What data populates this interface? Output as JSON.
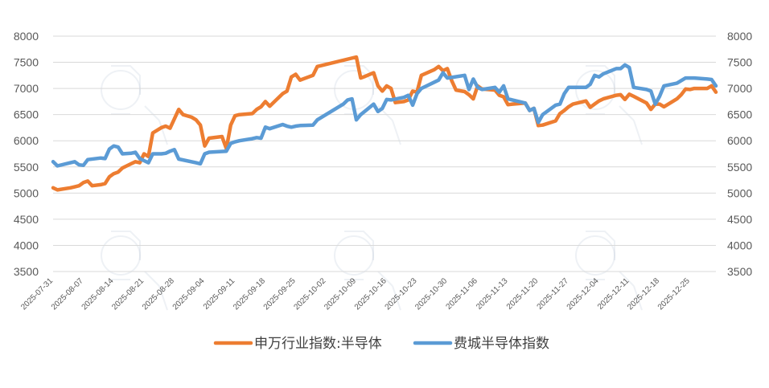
{
  "chart_data": {
    "type": "line",
    "title": "",
    "xlabel": "",
    "ylabel": "",
    "ylim": [
      3500,
      8000
    ],
    "y2lim": [
      3500,
      8000
    ],
    "yticks": [
      3500,
      4000,
      4500,
      5000,
      5500,
      6000,
      6500,
      7000,
      7500,
      8000
    ],
    "yticks_right": [
      3500,
      4000,
      4500,
      5000,
      5500,
      6000,
      6500,
      7000,
      7500,
      8000
    ],
    "xlim": [
      "2025-07-31",
      "2025-12-31"
    ],
    "xticks": [
      "2025-07-31",
      "2025-08-07",
      "2025-08-14",
      "2025-08-21",
      "2025-08-28",
      "2025-09-04",
      "2025-09-11",
      "2025-09-18",
      "2025-09-25",
      "2025-10-02",
      "2025-10-09",
      "2025-10-16",
      "2025-10-23",
      "2025-10-30",
      "2025-11-06",
      "2025-11-13",
      "2025-11-20",
      "2025-11-27",
      "2025-12-04",
      "2025-12-11",
      "2025-12-18",
      "2025-12-25"
    ],
    "grid": "horizontal",
    "legend_position": "bottom",
    "series": [
      {
        "name": "申万行业指数:半导体",
        "color": "#ED7D31",
        "points": [
          [
            "2025-07-31",
            5100
          ],
          [
            "2025-08-01",
            5060
          ],
          [
            "2025-08-04",
            5100
          ],
          [
            "2025-08-05",
            5120
          ],
          [
            "2025-08-06",
            5140
          ],
          [
            "2025-08-07",
            5200
          ],
          [
            "2025-08-08",
            5230
          ],
          [
            "2025-08-09",
            5140
          ],
          [
            "2025-08-11",
            5160
          ],
          [
            "2025-08-12",
            5180
          ],
          [
            "2025-08-13",
            5310
          ],
          [
            "2025-08-14",
            5370
          ],
          [
            "2025-08-15",
            5400
          ],
          [
            "2025-08-16",
            5480
          ],
          [
            "2025-08-18",
            5560
          ],
          [
            "2025-08-19",
            5600
          ],
          [
            "2025-08-20",
            5580
          ],
          [
            "2025-08-21",
            5750
          ],
          [
            "2025-08-22",
            5700
          ],
          [
            "2025-08-23",
            6150
          ],
          [
            "2025-08-25",
            6250
          ],
          [
            "2025-08-26",
            6280
          ],
          [
            "2025-08-27",
            6240
          ],
          [
            "2025-08-28",
            6420
          ],
          [
            "2025-08-29",
            6600
          ],
          [
            "2025-08-30",
            6500
          ],
          [
            "2025-09-01",
            6450
          ],
          [
            "2025-09-02",
            6400
          ],
          [
            "2025-09-03",
            6300
          ],
          [
            "2025-09-04",
            5900
          ],
          [
            "2025-09-05",
            6050
          ],
          [
            "2025-09-08",
            6080
          ],
          [
            "2025-09-09",
            5850
          ],
          [
            "2025-09-10",
            6300
          ],
          [
            "2025-09-11",
            6480
          ],
          [
            "2025-09-12",
            6500
          ],
          [
            "2025-09-15",
            6520
          ],
          [
            "2025-09-16",
            6600
          ],
          [
            "2025-09-17",
            6650
          ],
          [
            "2025-09-18",
            6750
          ],
          [
            "2025-09-19",
            6660
          ],
          [
            "2025-09-22",
            6900
          ],
          [
            "2025-09-23",
            6950
          ],
          [
            "2025-09-24",
            7220
          ],
          [
            "2025-09-25",
            7270
          ],
          [
            "2025-09-26",
            7160
          ],
          [
            "2025-09-29",
            7250
          ],
          [
            "2025-09-30",
            7420
          ],
          [
            "2025-10-09",
            7600
          ],
          [
            "2025-10-10",
            7200
          ],
          [
            "2025-10-11",
            7230
          ],
          [
            "2025-10-13",
            7300
          ],
          [
            "2025-10-14",
            7050
          ],
          [
            "2025-10-15",
            6950
          ],
          [
            "2025-10-16",
            7050
          ],
          [
            "2025-10-17",
            7000
          ],
          [
            "2025-10-18",
            6730
          ],
          [
            "2025-10-20",
            6750
          ],
          [
            "2025-10-21",
            6780
          ],
          [
            "2025-10-22",
            6950
          ],
          [
            "2025-10-23",
            6930
          ],
          [
            "2025-10-24",
            7250
          ],
          [
            "2025-10-27",
            7360
          ],
          [
            "2025-10-28",
            7420
          ],
          [
            "2025-10-29",
            7340
          ],
          [
            "2025-10-30",
            7380
          ],
          [
            "2025-10-31",
            7150
          ],
          [
            "2025-11-01",
            6970
          ],
          [
            "2025-11-03",
            6940
          ],
          [
            "2025-11-04",
            6880
          ],
          [
            "2025-11-05",
            6800
          ],
          [
            "2025-11-06",
            7050
          ],
          [
            "2025-11-07",
            6990
          ],
          [
            "2025-11-10",
            6970
          ],
          [
            "2025-11-11",
            6870
          ],
          [
            "2025-11-12",
            6840
          ],
          [
            "2025-11-13",
            6690
          ],
          [
            "2025-11-14",
            6700
          ],
          [
            "2025-11-17",
            6720
          ],
          [
            "2025-11-18",
            6580
          ],
          [
            "2025-11-19",
            6620
          ],
          [
            "2025-11-20",
            6290
          ],
          [
            "2025-11-21",
            6300
          ],
          [
            "2025-11-24",
            6380
          ],
          [
            "2025-11-25",
            6520
          ],
          [
            "2025-11-26",
            6580
          ],
          [
            "2025-11-27",
            6650
          ],
          [
            "2025-11-28",
            6700
          ],
          [
            "2025-12-01",
            6760
          ],
          [
            "2025-12-02",
            6640
          ],
          [
            "2025-12-03",
            6700
          ],
          [
            "2025-12-04",
            6760
          ],
          [
            "2025-12-05",
            6800
          ],
          [
            "2025-12-08",
            6870
          ],
          [
            "2025-12-09",
            6880
          ],
          [
            "2025-12-10",
            6790
          ],
          [
            "2025-12-11",
            6890
          ],
          [
            "2025-12-12",
            6850
          ],
          [
            "2025-12-15",
            6720
          ],
          [
            "2025-12-16",
            6600
          ],
          [
            "2025-12-17",
            6700
          ],
          [
            "2025-12-18",
            6700
          ],
          [
            "2025-12-19",
            6650
          ],
          [
            "2025-12-22",
            6800
          ],
          [
            "2025-12-23",
            6880
          ],
          [
            "2025-12-24",
            6990
          ],
          [
            "2025-12-25",
            6980
          ],
          [
            "2025-12-26",
            7000
          ],
          [
            "2025-12-29",
            7000
          ],
          [
            "2025-12-30",
            7050
          ],
          [
            "2025-12-31",
            6930
          ]
        ]
      },
      {
        "name": "费城半导体指数",
        "color": "#5B9BD5",
        "points": [
          [
            "2025-07-31",
            5600
          ],
          [
            "2025-08-01",
            5520
          ],
          [
            "2025-08-04",
            5580
          ],
          [
            "2025-08-05",
            5600
          ],
          [
            "2025-08-06",
            5540
          ],
          [
            "2025-08-07",
            5530
          ],
          [
            "2025-08-08",
            5640
          ],
          [
            "2025-08-11",
            5670
          ],
          [
            "2025-08-12",
            5660
          ],
          [
            "2025-08-13",
            5840
          ],
          [
            "2025-08-14",
            5900
          ],
          [
            "2025-08-15",
            5880
          ],
          [
            "2025-08-16",
            5750
          ],
          [
            "2025-08-18",
            5760
          ],
          [
            "2025-08-19",
            5780
          ],
          [
            "2025-08-20",
            5660
          ],
          [
            "2025-08-21",
            5620
          ],
          [
            "2025-08-22",
            5580
          ],
          [
            "2025-08-23",
            5750
          ],
          [
            "2025-08-25",
            5750
          ],
          [
            "2025-08-26",
            5760
          ],
          [
            "2025-08-27",
            5800
          ],
          [
            "2025-08-28",
            5830
          ],
          [
            "2025-08-29",
            5650
          ],
          [
            "2025-09-02",
            5580
          ],
          [
            "2025-09-03",
            5560
          ],
          [
            "2025-09-04",
            5750
          ],
          [
            "2025-09-05",
            5780
          ],
          [
            "2025-09-09",
            5800
          ],
          [
            "2025-09-10",
            5950
          ],
          [
            "2025-09-11",
            5980
          ],
          [
            "2025-09-12",
            6000
          ],
          [
            "2025-09-15",
            6040
          ],
          [
            "2025-09-16",
            6060
          ],
          [
            "2025-09-17",
            6050
          ],
          [
            "2025-09-18",
            6260
          ],
          [
            "2025-09-19",
            6230
          ],
          [
            "2025-09-22",
            6310
          ],
          [
            "2025-09-23",
            6280
          ],
          [
            "2025-09-24",
            6260
          ],
          [
            "2025-09-25",
            6280
          ],
          [
            "2025-09-26",
            6290
          ],
          [
            "2025-09-29",
            6300
          ],
          [
            "2025-09-30",
            6400
          ],
          [
            "2025-10-06",
            6700
          ],
          [
            "2025-10-07",
            6780
          ],
          [
            "2025-10-08",
            6800
          ],
          [
            "2025-10-09",
            6400
          ],
          [
            "2025-10-10",
            6500
          ],
          [
            "2025-10-13",
            6700
          ],
          [
            "2025-10-14",
            6560
          ],
          [
            "2025-10-15",
            6620
          ],
          [
            "2025-10-16",
            6790
          ],
          [
            "2025-10-17",
            6780
          ],
          [
            "2025-10-20",
            6830
          ],
          [
            "2025-10-21",
            6870
          ],
          [
            "2025-10-22",
            6680
          ],
          [
            "2025-10-23",
            6900
          ],
          [
            "2025-10-24",
            7000
          ],
          [
            "2025-10-27",
            7120
          ],
          [
            "2025-10-28",
            7160
          ],
          [
            "2025-10-29",
            7300
          ],
          [
            "2025-10-30",
            7200
          ],
          [
            "2025-10-31",
            7210
          ],
          [
            "2025-11-03",
            7250
          ],
          [
            "2025-11-04",
            6980
          ],
          [
            "2025-11-05",
            7180
          ],
          [
            "2025-11-06",
            7020
          ],
          [
            "2025-11-07",
            6980
          ],
          [
            "2025-11-10",
            7020
          ],
          [
            "2025-11-11",
            6930
          ],
          [
            "2025-11-12",
            7050
          ],
          [
            "2025-11-13",
            6800
          ],
          [
            "2025-11-14",
            6780
          ],
          [
            "2025-11-17",
            6720
          ],
          [
            "2025-11-18",
            6580
          ],
          [
            "2025-11-19",
            6620
          ],
          [
            "2025-11-20",
            6350
          ],
          [
            "2025-11-21",
            6500
          ],
          [
            "2025-11-24",
            6680
          ],
          [
            "2025-11-25",
            6700
          ],
          [
            "2025-11-26",
            6900
          ],
          [
            "2025-11-27",
            7020
          ],
          [
            "2025-12-01",
            7020
          ],
          [
            "2025-12-02",
            7080
          ],
          [
            "2025-12-03",
            7250
          ],
          [
            "2025-12-04",
            7220
          ],
          [
            "2025-12-05",
            7280
          ],
          [
            "2025-12-08",
            7380
          ],
          [
            "2025-12-09",
            7380
          ],
          [
            "2025-12-10",
            7450
          ],
          [
            "2025-12-11",
            7400
          ],
          [
            "2025-12-12",
            7020
          ],
          [
            "2025-12-15",
            6980
          ],
          [
            "2025-12-16",
            6950
          ],
          [
            "2025-12-17",
            6700
          ],
          [
            "2025-12-18",
            6850
          ],
          [
            "2025-12-19",
            7050
          ],
          [
            "2025-12-22",
            7100
          ],
          [
            "2025-12-23",
            7150
          ],
          [
            "2025-12-24",
            7200
          ],
          [
            "2025-12-26",
            7200
          ],
          [
            "2025-12-29",
            7180
          ],
          [
            "2025-12-30",
            7170
          ],
          [
            "2025-12-31",
            7050
          ]
        ]
      }
    ]
  }
}
